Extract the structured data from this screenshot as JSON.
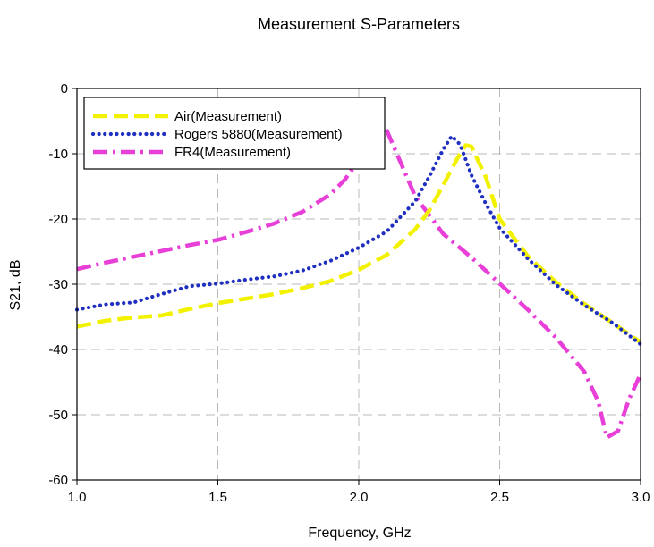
{
  "chart_data": {
    "type": "line",
    "title": "Measurement S-Parameters",
    "xlabel": "Frequency, GHz",
    "ylabel": "S21, dB",
    "xlim": [
      1.0,
      3.0
    ],
    "ylim": [
      -60,
      0
    ],
    "x_ticks": [
      1.0,
      1.5,
      2.0,
      2.5,
      3.0
    ],
    "x_tick_labels": [
      "1.0",
      "1.5",
      "2.0",
      "2.5",
      "3.0"
    ],
    "y_ticks": [
      0,
      -10,
      -20,
      -30,
      -40,
      -50,
      -60
    ],
    "y_tick_labels": [
      "0",
      "-10",
      "-20",
      "-30",
      "-40",
      "-50",
      "-60"
    ],
    "grid": true,
    "legend_position": "top-left",
    "series": [
      {
        "name": "Air(Measurement)",
        "color": "#f2f200",
        "dash": "dashed",
        "x": [
          1.0,
          1.1,
          1.2,
          1.3,
          1.4,
          1.5,
          1.6,
          1.7,
          1.8,
          1.9,
          2.0,
          2.1,
          2.2,
          2.25,
          2.3,
          2.35,
          2.38,
          2.4,
          2.45,
          2.5,
          2.6,
          2.7,
          2.8,
          2.9,
          3.0
        ],
        "y": [
          -36.5,
          -35.6,
          -35.1,
          -34.8,
          -33.8,
          -32.9,
          -32.2,
          -31.5,
          -30.6,
          -29.5,
          -27.8,
          -25.5,
          -21.6,
          -18.7,
          -14.8,
          -10.7,
          -8.7,
          -8.9,
          -13.5,
          -20,
          -25.7,
          -29.7,
          -33,
          -35.9,
          -38.9
        ]
      },
      {
        "name": "Rogers 5880(Measurement)",
        "color": "#1f2fc0",
        "dash": "dotted",
        "x": [
          1.0,
          1.1,
          1.2,
          1.3,
          1.4,
          1.5,
          1.6,
          1.7,
          1.8,
          1.9,
          2.0,
          2.1,
          2.2,
          2.25,
          2.3,
          2.33,
          2.36,
          2.4,
          2.45,
          2.5,
          2.6,
          2.7,
          2.8,
          2.9,
          3.0
        ],
        "y": [
          -33.9,
          -33.1,
          -32.8,
          -31.5,
          -30.3,
          -29.9,
          -29.3,
          -28.8,
          -27.9,
          -26.4,
          -24.4,
          -21.9,
          -17.3,
          -13.5,
          -9.3,
          -7.3,
          -8.6,
          -13.3,
          -17.6,
          -21.4,
          -26.1,
          -30.1,
          -33.2,
          -35.9,
          -39.2
        ]
      },
      {
        "name": "FR4(Measurement)",
        "color": "#e83fd8",
        "dash": "dashdot",
        "x": [
          1.0,
          1.1,
          1.2,
          1.3,
          1.4,
          1.5,
          1.6,
          1.7,
          1.8,
          1.9,
          1.95,
          2.0,
          2.05,
          2.08,
          2.1,
          2.15,
          2.2,
          2.3,
          2.4,
          2.5,
          2.6,
          2.7,
          2.8,
          2.85,
          2.88,
          2.92,
          2.96,
          3.0
        ],
        "y": [
          -27.7,
          -26.7,
          -25.8,
          -24.9,
          -24.0,
          -23.2,
          -22.0,
          -20.7,
          -18.9,
          -16.2,
          -14.0,
          -11.0,
          -7.3,
          -5.5,
          -6.5,
          -11.5,
          -16.5,
          -22.3,
          -25.9,
          -29.9,
          -33.9,
          -38.2,
          -43.4,
          -48.0,
          -53.5,
          -52.5,
          -47.5,
          -43.8
        ]
      }
    ]
  }
}
